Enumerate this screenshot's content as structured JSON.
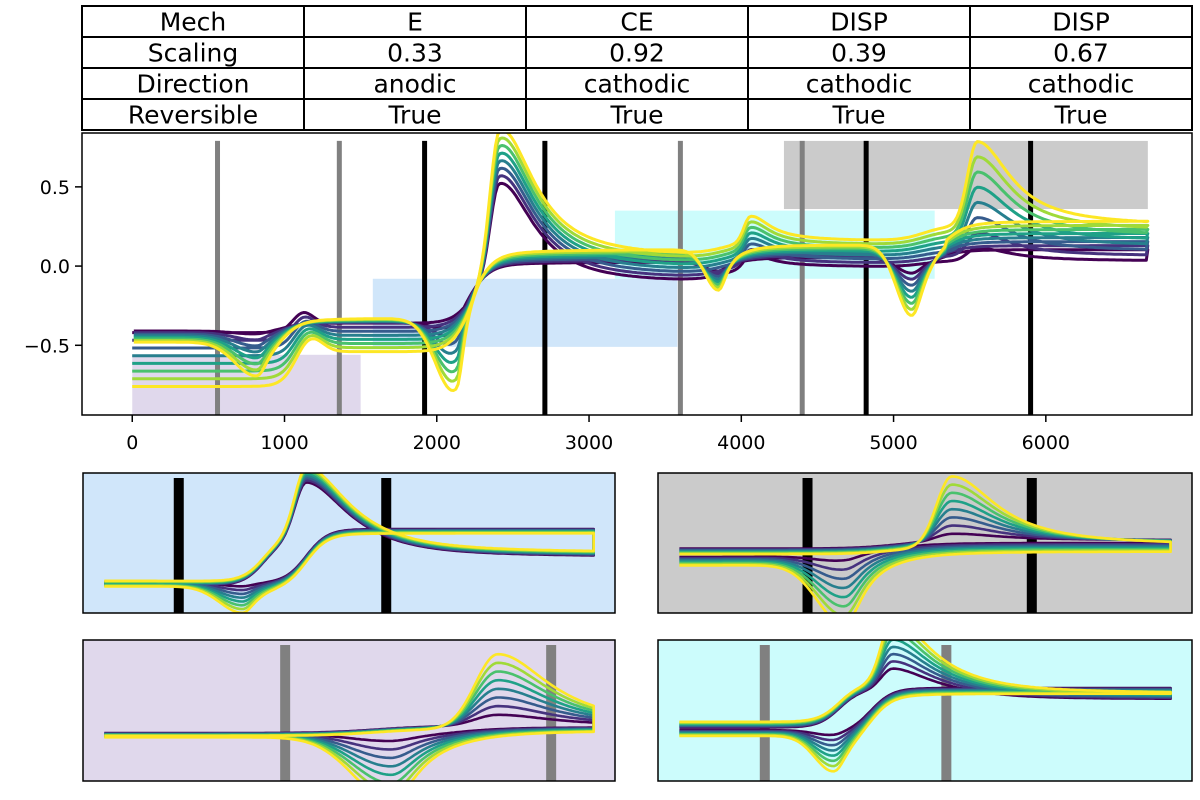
{
  "table": {
    "rows": [
      {
        "label": "Mech",
        "values": [
          "E",
          "CE",
          "DISP",
          "DISP"
        ]
      },
      {
        "label": "Scaling",
        "values": [
          "0.33",
          "0.92",
          "0.39",
          "0.67"
        ]
      },
      {
        "label": "Direction",
        "values": [
          "anodic",
          "cathodic",
          "cathodic",
          "cathodic"
        ]
      },
      {
        "label": "Reversible",
        "values": [
          "True",
          "True",
          "True",
          "True"
        ]
      }
    ]
  },
  "chart_data": [
    {
      "id": "main",
      "type": "line",
      "title": "",
      "xlabel": "",
      "ylabel": "",
      "xlim": [
        -330,
        6960
      ],
      "ylim": [
        -0.94,
        0.84
      ],
      "x_ticks": [
        0,
        1000,
        2000,
        3000,
        4000,
        5000,
        6000
      ],
      "x_tick_labels": [
        "0",
        "1000",
        "2000",
        "3000",
        "4000",
        "5000",
        "6000"
      ],
      "y_ticks": [
        0.5,
        0.0,
        -0.5
      ],
      "y_tick_labels": [
        "0.5",
        "0.0",
        "−0.5"
      ],
      "n_series": 8,
      "series_colors": [
        "#440154",
        "#46327e",
        "#365c8d",
        "#277f8e",
        "#1fa187",
        "#4ac16d",
        "#a0da39",
        "#fde725"
      ],
      "shaded_regions": [
        {
          "x": [
            0,
            1500
          ],
          "y": [
            -0.94,
            -0.56
          ],
          "color": "#e0d8ec"
        },
        {
          "x": [
            1580,
            3580
          ],
          "y": [
            -0.51,
            -0.08
          ],
          "color": "#d0e6fa"
        },
        {
          "x": [
            3170,
            5270
          ],
          "y": [
            -0.08,
            0.35
          ],
          "color": "#ccfcfc"
        },
        {
          "x": [
            4280,
            6670
          ],
          "y": [
            0.36,
            0.79
          ],
          "color": "#cbcbcb"
        }
      ],
      "vertical_lines": [
        {
          "x": 560,
          "color": "#808080"
        },
        {
          "x": 1360,
          "color": "#808080"
        },
        {
          "x": 1920,
          "color": "#000000"
        },
        {
          "x": 2710,
          "color": "#000000"
        },
        {
          "x": 3600,
          "color": "#808080"
        },
        {
          "x": 4400,
          "color": "#808080"
        },
        {
          "x": 4820,
          "color": "#000000"
        },
        {
          "x": 5900,
          "color": "#000000"
        }
      ],
      "x_end": 6670
    },
    {
      "id": "inset-1",
      "type": "line",
      "background": "#d0e6fa",
      "vertical_lines": [
        {
          "x": 0.18,
          "color": "#000000"
        },
        {
          "x": 0.57,
          "color": "#000000"
        }
      ],
      "description": "CE region zoom"
    },
    {
      "id": "inset-2",
      "type": "line",
      "background": "#cbcbcb",
      "vertical_lines": [
        {
          "x": 0.28,
          "color": "#000000"
        },
        {
          "x": 0.7,
          "color": "#000000"
        }
      ],
      "description": "DISP region zoom"
    },
    {
      "id": "inset-3",
      "type": "line",
      "background": "#e0d8ec",
      "vertical_lines": [
        {
          "x": 0.38,
          "color": "#808080"
        },
        {
          "x": 0.88,
          "color": "#808080"
        }
      ],
      "description": "E region zoom"
    },
    {
      "id": "inset-4",
      "type": "line",
      "background": "#ccfcfc",
      "vertical_lines": [
        {
          "x": 0.2,
          "color": "#808080"
        },
        {
          "x": 0.54,
          "color": "#808080"
        }
      ],
      "description": "DISP region zoom"
    }
  ]
}
